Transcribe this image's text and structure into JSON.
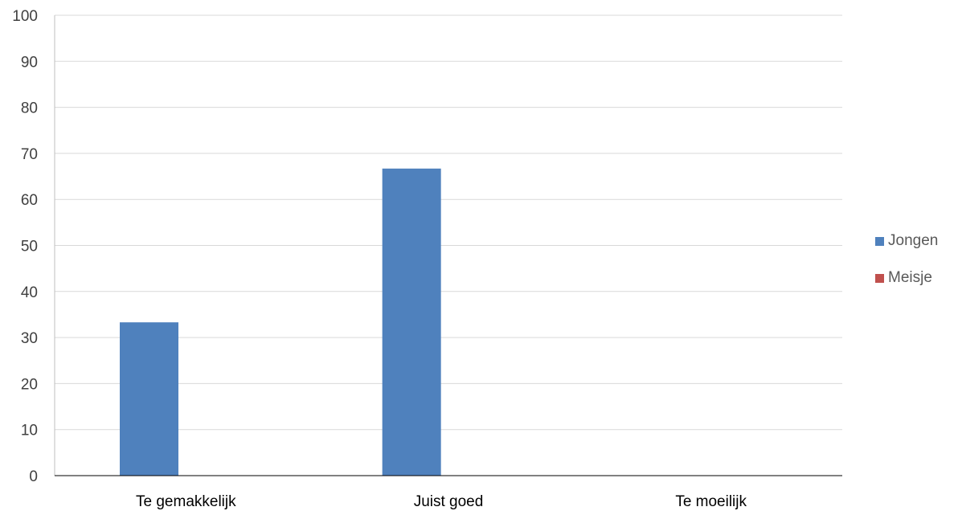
{
  "chart_data": {
    "type": "bar",
    "categories": [
      "Te gemakkelijk",
      "Juist goed",
      "Te moeilijk"
    ],
    "series": [
      {
        "name": "Jongen",
        "values": [
          33.3,
          66.7,
          0
        ],
        "color": "#4f81bd"
      },
      {
        "name": "Meisje",
        "values": [
          0,
          0,
          0
        ],
        "color": "#c0504d"
      }
    ],
    "title": "",
    "xlabel": "",
    "ylabel": "",
    "ylim": [
      0,
      100
    ],
    "yticks": [
      "0",
      "10",
      "20",
      "30",
      "40",
      "50",
      "60",
      "70",
      "80",
      "90",
      "100"
    ],
    "grid": true,
    "legend_position": "right"
  }
}
